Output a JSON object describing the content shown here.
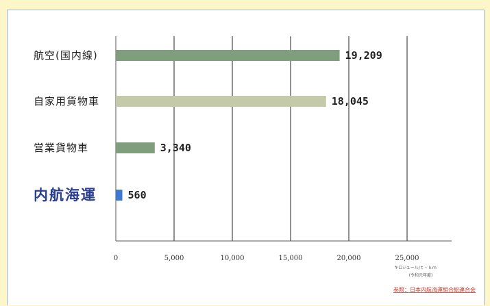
{
  "chart_data": {
    "type": "bar",
    "orientation": "horizontal",
    "categories": [
      "航空(国内線)",
      "自家用貨物車",
      "営業貨物車",
      "内航海運"
    ],
    "values": [
      19209,
      18045,
      3340,
      560
    ],
    "value_labels": [
      "19,209",
      "18,045",
      "3,340",
      "560"
    ],
    "bar_colors": [
      "#7f9f7c",
      "#c4c9a9",
      "#7f9f7c",
      "#3f78d3"
    ],
    "highlight_category": "内航海運",
    "xlim": [
      0,
      27000
    ],
    "xticks": [
      0,
      5000,
      10000,
      15000,
      20000,
      25000
    ],
    "xtick_labels": [
      "0",
      "5,000",
      "10,000",
      "15,000",
      "20,000",
      "25,000"
    ],
    "grid": "vertical",
    "unit_label": "キロジュール/ｔ・ｋｍ",
    "unit_sublabel": "(令和元年度)",
    "source": "参照：日本内航海運組合総連合会"
  }
}
